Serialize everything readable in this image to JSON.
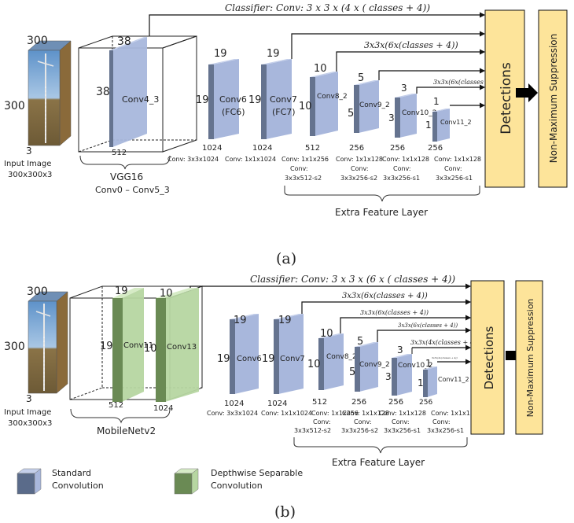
{
  "colors": {
    "standard_face": "#a8b7dc",
    "standard_side": "#65738f",
    "standard_top": "#c4cfea",
    "depthwise_face": "#b6d6a1",
    "depthwise_side": "#6a8a54",
    "depthwise_top": "#d6ebc6",
    "detections_fill": "#fde49a",
    "line": "#111111"
  },
  "a": {
    "classifier": "Classifier: Conv: 3 x 3 x (4 x ( classes + 4))",
    "cls_6x": "3x3x(6x(classes + 4))",
    "cls_6x_small": "3x3x(6x(classes + 4))",
    "input_dims": {
      "h": "300",
      "w": "300",
      "d": "3"
    },
    "input_label": "Input Image",
    "input_size": "300x300x3",
    "vgg_cube": {
      "top": "38",
      "left": "38",
      "bottom": "512",
      "inner": "Conv4_3"
    },
    "vgg_label": "VGG16",
    "vgg_sub": "Conv0 – Conv5_3",
    "conv6": {
      "top": "19",
      "left": "19",
      "bottom": "1024",
      "name1": "Conv6",
      "name2": "(FC6)",
      "spec": "Conv: 3x3x1024"
    },
    "conv7": {
      "top": "19",
      "left": "19",
      "bottom": "1024",
      "name1": "Conv7",
      "name2": "(FC7)",
      "spec": "Conv: 1x1x1024"
    },
    "conv8": {
      "top": "10",
      "left": "10",
      "bottom": "512",
      "name": "Conv8_2",
      "spec1": "Conv: 1x1x256",
      "spec2": "Conv:",
      "spec3": "3x3x512-s2"
    },
    "conv9": {
      "top": "5",
      "left": "5",
      "bottom": "256",
      "name": "Conv9_2",
      "spec1": "Conv: 1x1x128",
      "spec2": "Conv:",
      "spec3": "3x3x256-s2"
    },
    "conv10": {
      "top": "3",
      "left": "3",
      "bottom": "256",
      "name": "Conv10_2",
      "spec1": "Conv: 1x1x128",
      "spec2": "Conv:",
      "spec3": "3x3x256-s1"
    },
    "conv11": {
      "top": "1",
      "left": "1",
      "bottom": "256",
      "name": "Conv11_2",
      "spec1": "Conv: 1x1x128",
      "spec2": "Conv:",
      "spec3": "3x3x256-s1"
    },
    "extra": "Extra Feature Layer",
    "detections": "Detections",
    "nms": "Non-Maximum Suppression",
    "caption": "(a)"
  },
  "b": {
    "classifier": "Classifier: Conv: 3 x 3 x (6 x ( classes + 4))",
    "cls1": "3x3x(6x(classes + 4))",
    "cls2": "3x3x(6x(classes + 4))",
    "cls3": "3x3x(6x(classes + 4))",
    "cls4": "3x3x(4x(classes + 4)",
    "cls5": "3x3x(4x(classes + 4))",
    "input_dims": {
      "h": "300",
      "w": "300",
      "d": "3"
    },
    "input_label": "Input Image",
    "input_size": "300x300x3",
    "mb_cube": {
      "top1": "19",
      "top2": "10",
      "left1": "19",
      "left2": "10",
      "bottom1": "512",
      "bottom2": "1024",
      "inner1": "Conv11",
      "inner2": "Conv13"
    },
    "mb_label": "MobileNetv2",
    "conv6": {
      "top": "19",
      "left": "19",
      "bottom": "1024",
      "name": "Conv6",
      "spec": "Conv: 3x3x1024"
    },
    "conv7": {
      "top": "19",
      "left": "19",
      "bottom": "1024",
      "name": "Conv7",
      "spec": "Conv: 1x1x1024"
    },
    "conv8": {
      "top": "10",
      "left": "10",
      "bottom": "512",
      "name": "Conv8_2",
      "spec1": "Conv: 1x1x256",
      "spec2": "Conv:",
      "spec3": "3x3x512-s2"
    },
    "conv9": {
      "top": "5",
      "left": "5",
      "bottom": "256",
      "name": "Conv9_2",
      "spec1": "Conv: 1x1x128",
      "spec2": "Conv:",
      "spec3": "3x3x256-s2"
    },
    "conv10": {
      "top": "3",
      "left": "3",
      "bottom": "256",
      "name": "Conv10_2",
      "spec1": "Conv: 1x1x128",
      "spec2": "Conv:",
      "spec3": "3x3x256-s1"
    },
    "conv11": {
      "top": "1",
      "left": "1",
      "bottom": "256",
      "name": "Conv11_2",
      "spec1": "Conv: 1x1x128",
      "spec2": "Conv:",
      "spec3": "3x3x256-s1"
    },
    "extra": "Extra Feature Layer",
    "detections": "Detections",
    "nms": "Non-Maximum Suppression",
    "caption": "(b)"
  },
  "legend": {
    "standard1": "Standard",
    "standard2": "Convolution",
    "depthwise1": "Depthwise Separable",
    "depthwise2": "Convolution"
  }
}
